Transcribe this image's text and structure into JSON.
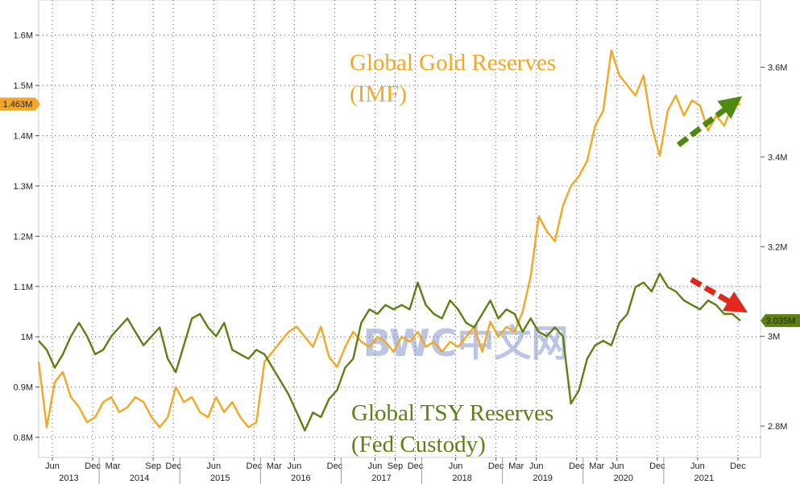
{
  "chart_data": {
    "type": "line",
    "title": "",
    "watermark": "BWC中文网",
    "colors": {
      "gold": "#f5a623",
      "tsy": "#5d7f13",
      "green_arrow": "#4f8a10",
      "red_arrow": "#e0281b"
    },
    "grid": true,
    "annotations": {
      "gold": [
        "Global Gold Reserves",
        "(IMF)"
      ],
      "tsy": [
        "Global TSY Reserves",
        "(Fed Custody)"
      ]
    },
    "left_axis": {
      "series": "gold",
      "range": [
        0.76,
        1.67
      ],
      "ticks": [
        {
          "v": 0.8,
          "label": "0.8M"
        },
        {
          "v": 0.9,
          "label": "0.9M"
        },
        {
          "v": 1.0,
          "label": "1M"
        },
        {
          "v": 1.1,
          "label": "1.1M"
        },
        {
          "v": 1.2,
          "label": "1.2M"
        },
        {
          "v": 1.3,
          "label": "1.3M"
        },
        {
          "v": 1.4,
          "label": "1.4M"
        },
        {
          "v": 1.5,
          "label": "1.5M"
        },
        {
          "v": 1.6,
          "label": "1.6M"
        }
      ],
      "last_value_label": "1.463M"
    },
    "right_axis": {
      "series": "tsy",
      "range": [
        2.73,
        3.75
      ],
      "ticks": [
        {
          "v": 2.8,
          "label": "2.8M"
        },
        {
          "v": 3.0,
          "label": "3M"
        },
        {
          "v": 3.2,
          "label": "3.2M"
        },
        {
          "v": 3.4,
          "label": "3.4M"
        },
        {
          "v": 3.6,
          "label": "3.6M"
        }
      ],
      "last_value_label": "3.035M"
    },
    "x_axis": {
      "range": [
        2013.25,
        2022.2
      ],
      "month_ticks": [
        {
          "x": 2013.42,
          "label": "Jun"
        },
        {
          "x": 2013.92,
          "label": "Dec"
        },
        {
          "x": 2014.17,
          "label": "Mar"
        },
        {
          "x": 2014.67,
          "label": "Sep"
        },
        {
          "x": 2014.92,
          "label": "Dec"
        },
        {
          "x": 2015.42,
          "label": "Jun"
        },
        {
          "x": 2015.92,
          "label": "Dec"
        },
        {
          "x": 2016.17,
          "label": "Mar"
        },
        {
          "x": 2016.42,
          "label": "Jun"
        },
        {
          "x": 2016.92,
          "label": "Dec"
        },
        {
          "x": 2017.42,
          "label": "Jun"
        },
        {
          "x": 2017.67,
          "label": "Sep"
        },
        {
          "x": 2017.92,
          "label": "Dec"
        },
        {
          "x": 2018.42,
          "label": "Jun"
        },
        {
          "x": 2018.92,
          "label": "Dec"
        },
        {
          "x": 2019.17,
          "label": "Mar"
        },
        {
          "x": 2019.42,
          "label": "Jun"
        },
        {
          "x": 2019.92,
          "label": "Dec"
        },
        {
          "x": 2020.17,
          "label": "Mar"
        },
        {
          "x": 2020.42,
          "label": "Jun"
        },
        {
          "x": 2020.92,
          "label": "Dec"
        },
        {
          "x": 2021.42,
          "label": "Jun"
        },
        {
          "x": 2021.92,
          "label": "Dec"
        }
      ],
      "years": [
        "2013",
        "2014",
        "2015",
        "2016",
        "2017",
        "2018",
        "2019",
        "2020",
        "2021"
      ],
      "year_boundaries": [
        2014.0,
        2015.0,
        2016.0,
        2017.0,
        2018.0,
        2019.0,
        2020.0,
        2021.0
      ]
    },
    "series": [
      {
        "id": "gold",
        "name": "Global Gold Reserves (IMF)",
        "axis": "left",
        "x": [
          2013.25,
          2013.35,
          2013.45,
          2013.55,
          2013.65,
          2013.75,
          2013.85,
          2013.95,
          2014.05,
          2014.15,
          2014.25,
          2014.35,
          2014.45,
          2014.55,
          2014.65,
          2014.75,
          2014.85,
          2014.95,
          2015.05,
          2015.15,
          2015.25,
          2015.35,
          2015.45,
          2015.55,
          2015.65,
          2015.75,
          2015.85,
          2015.95,
          2016.05,
          2016.15,
          2016.25,
          2016.35,
          2016.45,
          2016.55,
          2016.65,
          2016.75,
          2016.85,
          2016.95,
          2017.05,
          2017.15,
          2017.25,
          2017.35,
          2017.45,
          2017.55,
          2017.65,
          2017.75,
          2017.85,
          2017.95,
          2018.05,
          2018.15,
          2018.25,
          2018.35,
          2018.45,
          2018.55,
          2018.65,
          2018.75,
          2018.85,
          2018.95,
          2019.05,
          2019.15,
          2019.25,
          2019.35,
          2019.45,
          2019.55,
          2019.65,
          2019.75,
          2019.85,
          2019.95,
          2020.05,
          2020.15,
          2020.25,
          2020.35,
          2020.45,
          2020.55,
          2020.65,
          2020.75,
          2020.85,
          2020.95,
          2021.05,
          2021.15,
          2021.25,
          2021.35,
          2021.45,
          2021.55,
          2021.65,
          2021.75,
          2021.85,
          2021.95
        ],
        "y": [
          0.95,
          0.82,
          0.91,
          0.93,
          0.88,
          0.86,
          0.83,
          0.84,
          0.87,
          0.88,
          0.85,
          0.86,
          0.88,
          0.87,
          0.84,
          0.82,
          0.84,
          0.9,
          0.87,
          0.88,
          0.85,
          0.84,
          0.88,
          0.85,
          0.87,
          0.84,
          0.82,
          0.83,
          0.95,
          0.97,
          0.99,
          1.01,
          1.02,
          1.0,
          0.98,
          1.02,
          0.96,
          0.94,
          0.98,
          1.01,
          0.99,
          0.98,
          1.0,
          0.99,
          0.97,
          1.0,
          0.99,
          1.01,
          0.98,
          0.99,
          0.97,
          0.99,
          0.98,
          1.0,
          1.02,
          0.97,
          1.03,
          1.0,
          1.02,
          1.01,
          1.05,
          1.12,
          1.24,
          1.21,
          1.19,
          1.26,
          1.3,
          1.32,
          1.35,
          1.42,
          1.45,
          1.57,
          1.52,
          1.5,
          1.48,
          1.52,
          1.42,
          1.36,
          1.45,
          1.48,
          1.44,
          1.47,
          1.46,
          1.41,
          1.44,
          1.42,
          1.46,
          1.463
        ]
      },
      {
        "id": "tsy",
        "name": "Global TSY Reserves (Fed Custody)",
        "axis": "right",
        "x": [
          2013.25,
          2013.35,
          2013.45,
          2013.55,
          2013.65,
          2013.75,
          2013.85,
          2013.95,
          2014.05,
          2014.15,
          2014.25,
          2014.35,
          2014.45,
          2014.55,
          2014.65,
          2014.75,
          2014.85,
          2014.95,
          2015.05,
          2015.15,
          2015.25,
          2015.35,
          2015.45,
          2015.55,
          2015.65,
          2015.75,
          2015.85,
          2015.95,
          2016.05,
          2016.15,
          2016.25,
          2016.35,
          2016.45,
          2016.55,
          2016.65,
          2016.75,
          2016.85,
          2016.95,
          2017.05,
          2017.15,
          2017.25,
          2017.35,
          2017.45,
          2017.55,
          2017.65,
          2017.75,
          2017.85,
          2017.95,
          2018.05,
          2018.15,
          2018.25,
          2018.35,
          2018.45,
          2018.55,
          2018.65,
          2018.75,
          2018.85,
          2018.95,
          2019.05,
          2019.15,
          2019.25,
          2019.35,
          2019.45,
          2019.55,
          2019.65,
          2019.75,
          2019.85,
          2019.95,
          2020.05,
          2020.15,
          2020.25,
          2020.35,
          2020.45,
          2020.55,
          2020.65,
          2020.75,
          2020.85,
          2020.95,
          2021.05,
          2021.15,
          2021.25,
          2021.35,
          2021.45,
          2021.55,
          2021.65,
          2021.75,
          2021.85,
          2021.95
        ],
        "y": [
          2.99,
          2.97,
          2.93,
          2.96,
          3.0,
          3.03,
          3.0,
          2.96,
          2.97,
          3.0,
          3.02,
          3.04,
          3.01,
          2.98,
          3.0,
          3.02,
          2.95,
          2.92,
          2.98,
          3.04,
          3.05,
          3.02,
          3.0,
          3.03,
          2.97,
          2.96,
          2.95,
          2.97,
          2.96,
          2.93,
          2.9,
          2.87,
          2.83,
          2.79,
          2.83,
          2.82,
          2.86,
          2.88,
          2.93,
          2.95,
          3.03,
          3.06,
          3.05,
          3.07,
          3.06,
          3.07,
          3.06,
          3.12,
          3.07,
          3.05,
          3.04,
          3.08,
          3.06,
          3.03,
          3.02,
          3.05,
          3.08,
          3.04,
          3.06,
          3.05,
          3.01,
          3.04,
          3.01,
          3.0,
          3.02,
          3.0,
          2.85,
          2.88,
          2.95,
          2.98,
          2.99,
          2.98,
          3.03,
          3.05,
          3.11,
          3.12,
          3.1,
          3.14,
          3.11,
          3.1,
          3.08,
          3.07,
          3.06,
          3.08,
          3.07,
          3.05,
          3.05,
          3.035
        ]
      }
    ]
  }
}
